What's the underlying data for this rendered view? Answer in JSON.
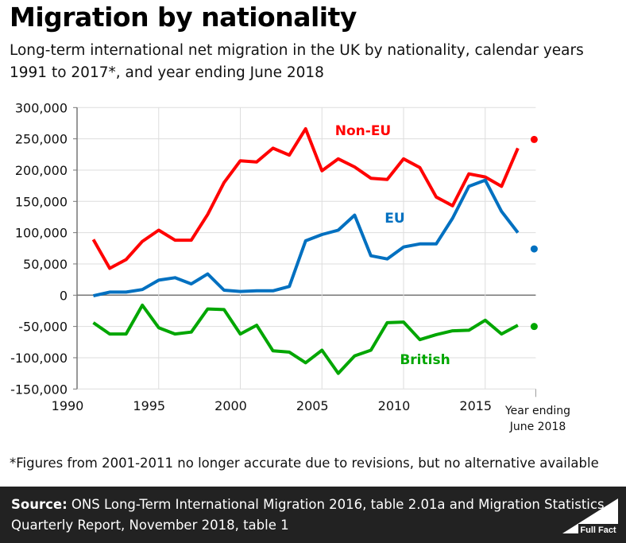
{
  "title": "Migration by nationality",
  "subtitle": "Long-term international net migration in the UK by nationality, calendar years 1991 to 2017*, and year ending June 2018",
  "footnote": "*Figures from 2001-2011 no longer accurate due to revisions, but no alternative available",
  "source": {
    "label": "Source:",
    "text": " ONS Long-Term International Migration 2016, table 2.01a and Migration Statistics Quarterly Report, November 2018, table 1"
  },
  "logo": "Full Fact",
  "chart_data": {
    "type": "line",
    "xlim": [
      1990,
      2018
    ],
    "ylim": [
      -150000,
      300000
    ],
    "x_ticks": [
      1990,
      1995,
      2000,
      2005,
      2010,
      2015
    ],
    "x_tick_labels": [
      "1990",
      "1995",
      "2000",
      "2005",
      "2010",
      "2015"
    ],
    "extra_x_label": "Year ending June 2018",
    "y_ticks": [
      300000,
      250000,
      200000,
      150000,
      100000,
      50000,
      0,
      -50000,
      -100000,
      -150000
    ],
    "y_tick_labels": [
      "300,000",
      "250,000",
      "200,000",
      "150,000",
      "100,000",
      "50,000",
      "0",
      "-50,000",
      "-100,000",
      "-150,000"
    ],
    "grid": true,
    "x": [
      1991,
      1992,
      1993,
      1994,
      1995,
      1996,
      1997,
      1998,
      1999,
      2000,
      2001,
      2002,
      2003,
      2004,
      2005,
      2006,
      2007,
      2008,
      2009,
      2010,
      2011,
      2012,
      2013,
      2014,
      2015,
      2016,
      2017
    ],
    "series": [
      {
        "name": "Non-EU",
        "color": "#ff0000",
        "values": [
          89000,
          43000,
          57000,
          86000,
          104000,
          88000,
          88000,
          129000,
          180000,
          215000,
          213000,
          235000,
          224000,
          266000,
          199000,
          218000,
          205000,
          187000,
          185000,
          218000,
          204000,
          157000,
          143000,
          194000,
          189000,
          174000,
          235000
        ],
        "year_ending_june_2018": 249000
      },
      {
        "name": "EU",
        "color": "#0070c0",
        "values": [
          -1000,
          5000,
          5000,
          9000,
          24000,
          28000,
          18000,
          34000,
          8000,
          6000,
          7000,
          7000,
          14000,
          87000,
          97000,
          104000,
          128000,
          63000,
          58000,
          77000,
          82000,
          82000,
          123000,
          174000,
          184000,
          134000,
          100000
        ],
        "year_ending_june_2018": 74000
      },
      {
        "name": "British",
        "color": "#00a600",
        "values": [
          -44000,
          -62000,
          -62000,
          -16000,
          -52000,
          -62000,
          -59000,
          -22000,
          -23000,
          -62000,
          -48000,
          -89000,
          -91000,
          -108000,
          -88000,
          -125000,
          -97000,
          -88000,
          -44000,
          -43000,
          -71000,
          -63000,
          -57000,
          -56000,
          -40000,
          -62000,
          -48000
        ],
        "year_ending_june_2018": -50000
      }
    ]
  }
}
